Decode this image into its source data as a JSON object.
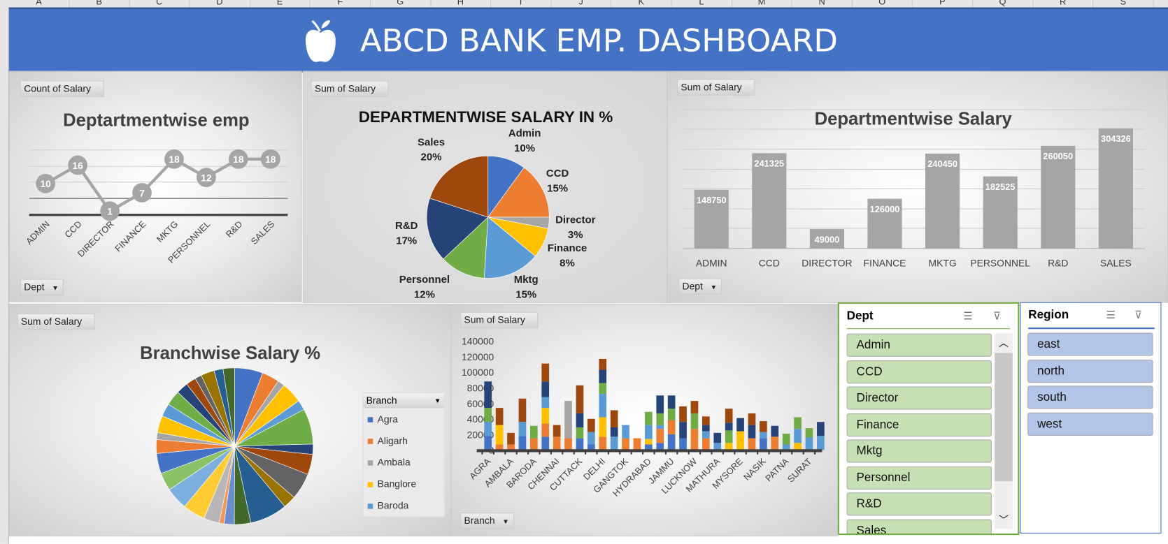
{
  "sheet": {
    "columns": [
      "A",
      "B",
      "C",
      "D",
      "E",
      "F",
      "G",
      "H",
      "I",
      "J",
      "K",
      "L",
      "M",
      "N",
      "O",
      "P",
      "Q",
      "R",
      "S"
    ]
  },
  "banner": {
    "title": "ABCD BANK EMP. DASHBOARD",
    "icon": "apple-icon"
  },
  "colors": {
    "banner": "#4472c4",
    "admin": "#4472c4",
    "ccd": "#ed7d31",
    "director": "#a5a5a5",
    "finance": "#ffc000",
    "mktg": "#5b9bd5",
    "personnel": "#70ad47",
    "rnd": "#264478",
    "sales": "#9e480e",
    "dept_slicer": "#c6e0b4",
    "region_slicer": "#b4c6e7"
  },
  "panels": {
    "dept_emp": {
      "field_button": "Count of Salary",
      "filter_button": "Dept"
    },
    "dept_pct": {
      "field_button": "Sum of Salary"
    },
    "dept_salary": {
      "field_button": "Sum of Salary",
      "filter_button": "Dept"
    },
    "branch_pct": {
      "field_button": "Sum of Salary",
      "legend_title": "Branch",
      "legend": [
        "Agra",
        "Aligarh",
        "Ambala",
        "Banglore",
        "Baroda"
      ]
    },
    "branch_bar": {
      "field_button": "Sum of Salary",
      "filter_button": "Branch"
    }
  },
  "slicers": {
    "dept": {
      "title": "Dept",
      "items": [
        "Admin",
        "CCD",
        "Director",
        "Finance",
        "Mktg",
        "Personnel",
        "R&D",
        "Sales"
      ]
    },
    "region": {
      "title": "Region",
      "items": [
        "east",
        "north",
        "south",
        "west"
      ]
    }
  },
  "chart_data": [
    {
      "type": "line",
      "title": "Deptartmentwise emp",
      "categories": [
        "ADMIN",
        "CCD",
        "DIRECTOR",
        "FINANCE",
        "MKTG",
        "PERSONNEL",
        "R&D",
        "SALES"
      ],
      "values": [
        10,
        16,
        1,
        7,
        18,
        12,
        18,
        18
      ],
      "data_labels": true
    },
    {
      "type": "pie",
      "title": "DEPARTMENTWISE SALARY IN %",
      "labels": [
        "Admin",
        "CCD",
        "Director",
        "Finance",
        "Mktg",
        "Personnel",
        "R&D",
        "Sales"
      ],
      "values": [
        10,
        15,
        3,
        8,
        15,
        12,
        17,
        20
      ],
      "value_labels": [
        "10%",
        "15%",
        "3%",
        "8%",
        "15%",
        "12%",
        "17%",
        "20%"
      ]
    },
    {
      "type": "bar",
      "title": "Departmentwise Salary",
      "categories": [
        "ADMIN",
        "CCD",
        "DIRECTOR",
        "FINANCE",
        "MKTG",
        "PERSONNEL",
        "R&D",
        "SALES"
      ],
      "values": [
        148750,
        241325,
        49000,
        126000,
        240450,
        182525,
        260050,
        304326
      ]
    },
    {
      "type": "pie",
      "title": "Branchwise Salary %",
      "legend": [
        "Agra",
        "Aligarh",
        "Ambala",
        "Banglore",
        "Baroda"
      ],
      "source": "branch totals (30 branches)"
    },
    {
      "type": "bar",
      "stacked": true,
      "ylim": [
        0,
        140000
      ],
      "yticks": [
        "0",
        "20000",
        "40000",
        "60000",
        "80000",
        "100000",
        "120000",
        "140000"
      ],
      "categories": [
        "AGRA",
        "",
        "AMBALA",
        "",
        "BARODA",
        "",
        "CHENNAI",
        "",
        "CUTTACK",
        "",
        "DELHI",
        "",
        "GANGTOK",
        "",
        "HYDRABAD",
        "",
        "JAMMU",
        "",
        "LUCKNOW",
        "",
        "MATHURA",
        "",
        "MYSORE",
        "",
        "NASIK",
        "",
        "PATNA",
        "",
        "SURAT",
        ""
      ],
      "series": [
        {
          "name": "Admin",
          "values": [
            18000,
            0,
            0,
            18000,
            0,
            17000,
            0,
            0,
            15000,
            7000,
            0,
            0,
            0,
            0,
            7000,
            9000,
            20000,
            15000,
            0,
            0,
            0,
            0,
            0,
            0,
            15000,
            0,
            0,
            0,
            0,
            0
          ]
        },
        {
          "name": "CCD",
          "values": [
            0,
            7000,
            7000,
            0,
            15000,
            17000,
            17000,
            15000,
            0,
            0,
            17000,
            0,
            15000,
            15000,
            0,
            18000,
            18000,
            0,
            27000,
            15000,
            0,
            0,
            0,
            15000,
            0,
            17000,
            0,
            0,
            0,
            0
          ]
        },
        {
          "name": "Director",
          "values": [
            0,
            0,
            0,
            0,
            0,
            0,
            0,
            48000,
            0,
            0,
            0,
            0,
            0,
            0,
            0,
            0,
            0,
            0,
            0,
            0,
            0,
            0,
            0,
            0,
            0,
            0,
            0,
            0,
            0,
            0
          ]
        },
        {
          "name": "Finance",
          "values": [
            0,
            25000,
            0,
            0,
            0,
            20000,
            0,
            0,
            0,
            0,
            25000,
            0,
            0,
            0,
            7000,
            0,
            0,
            0,
            0,
            0,
            0,
            9000,
            24000,
            0,
            0,
            0,
            0,
            9000,
            0,
            0
          ]
        },
        {
          "name": "Mktg",
          "values": [
            18000,
            0,
            0,
            18000,
            0,
            14000,
            0,
            0,
            0,
            16000,
            30000,
            17000,
            17000,
            0,
            18000,
            5000,
            0,
            0,
            0,
            9000,
            9000,
            0,
            0,
            0,
            8000,
            0,
            7000,
            18000,
            16000,
            18000
          ]
        },
        {
          "name": "Personnel",
          "values": [
            18000,
            0,
            0,
            0,
            16000,
            0,
            0,
            0,
            14000,
            0,
            14000,
            0,
            0,
            0,
            17000,
            15000,
            15000,
            0,
            20000,
            0,
            0,
            16000,
            0,
            0,
            0,
            0,
            14000,
            15000,
            12000,
            0
          ]
        },
        {
          "name": "R&D",
          "values": [
            34000,
            0,
            0,
            0,
            0,
            20000,
            0,
            0,
            18000,
            0,
            17000,
            12000,
            0,
            0,
            0,
            23000,
            17000,
            21000,
            0,
            8000,
            13000,
            10000,
            17000,
            17000,
            0,
            14000,
            0,
            0,
            0,
            18000
          ]
        },
        {
          "name": "Sales",
          "values": [
            0,
            22000,
            15000,
            30000,
            0,
            23000,
            15000,
            0,
            36000,
            17000,
            14000,
            22000,
            0,
            0,
            0,
            0,
            0,
            20000,
            16000,
            11000,
            0,
            18000,
            0,
            15000,
            14000,
            0,
            0,
            0,
            0,
            0
          ]
        }
      ]
    }
  ]
}
